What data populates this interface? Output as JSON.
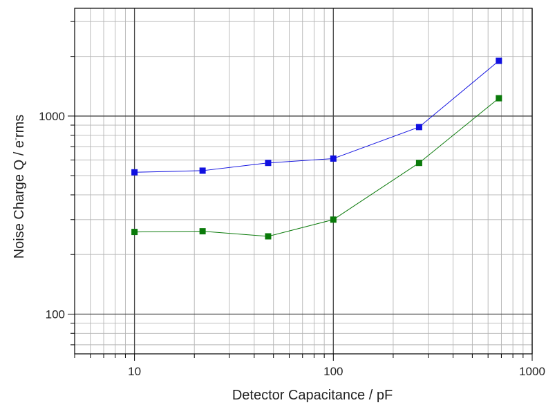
{
  "chart_data": {
    "type": "line",
    "xscale": "log",
    "yscale": "log",
    "xlim": [
      5,
      1000
    ],
    "ylim": [
      63,
      3500
    ],
    "grid": true,
    "xlabel": "Detector Capacitance / pF",
    "ylabel_parts": [
      "Noise Charge Q / e",
      "-",
      "rms"
    ],
    "xticks": [
      {
        "value": 10,
        "label": "10"
      },
      {
        "value": 100,
        "label": "100"
      },
      {
        "value": 1000,
        "label": "1000"
      }
    ],
    "yticks": [
      {
        "value": 100,
        "label": "100"
      },
      {
        "value": 1000,
        "label": "1000"
      }
    ],
    "series": [
      {
        "color": "#1010e0",
        "marker": "square",
        "x": [
          10,
          22,
          47,
          100,
          270,
          680
        ],
        "y": [
          520,
          530,
          580,
          610,
          880,
          1900
        ]
      },
      {
        "color": "#0a7a0a",
        "marker": "square",
        "x": [
          10,
          22,
          47,
          100,
          270,
          680
        ],
        "y": [
          260,
          262,
          247,
          300,
          580,
          1230
        ]
      }
    ]
  }
}
